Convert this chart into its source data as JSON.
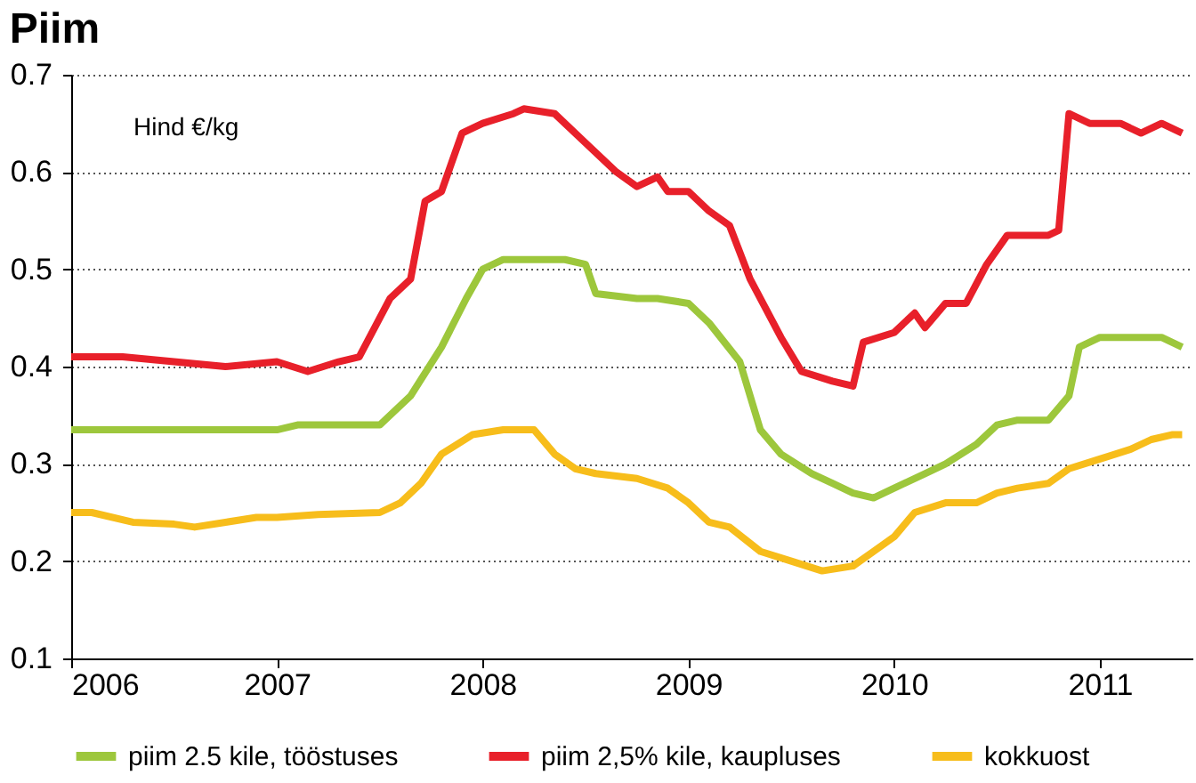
{
  "chart_data": {
    "type": "line",
    "title": "Piim",
    "annotations": [
      "Hind €/kg"
    ],
    "xlim": [
      2006,
      2011.45
    ],
    "xticks": [
      2006,
      2007,
      2008,
      2009,
      2010,
      2011
    ],
    "ylim": [
      0.1,
      0.7
    ],
    "yticks": [
      0.1,
      0.2,
      0.3,
      0.4,
      0.5,
      0.6,
      0.7
    ],
    "grid": "y",
    "legend": "bottom",
    "marker": "none",
    "line_style": "solid",
    "series": [
      {
        "name": "piim 2.5 kile, tööstuses",
        "color": "#9dc73c",
        "x": [
          2006.0,
          2006.5,
          2007.0,
          2007.1,
          2007.2,
          2007.5,
          2007.65,
          2007.8,
          2007.92,
          2008.0,
          2008.1,
          2008.4,
          2008.5,
          2008.55,
          2008.75,
          2008.85,
          2009.0,
          2009.1,
          2009.25,
          2009.35,
          2009.45,
          2009.6,
          2009.7,
          2009.8,
          2009.9,
          2010.0,
          2010.15,
          2010.25,
          2010.4,
          2010.5,
          2010.6,
          2010.75,
          2010.85,
          2010.9,
          2011.0,
          2011.2,
          2011.3,
          2011.4
        ],
        "values": [
          0.335,
          0.335,
          0.335,
          0.34,
          0.34,
          0.34,
          0.37,
          0.42,
          0.47,
          0.5,
          0.51,
          0.51,
          0.505,
          0.475,
          0.47,
          0.47,
          0.465,
          0.445,
          0.405,
          0.335,
          0.31,
          0.29,
          0.28,
          0.27,
          0.265,
          0.275,
          0.29,
          0.3,
          0.32,
          0.34,
          0.345,
          0.345,
          0.37,
          0.42,
          0.43,
          0.43,
          0.43,
          0.42
        ]
      },
      {
        "name": "piim 2,5% kile, kaupluses",
        "color": "#e8202a",
        "x": [
          2006.0,
          2006.25,
          2006.5,
          2006.75,
          2007.0,
          2007.15,
          2007.3,
          2007.4,
          2007.55,
          2007.65,
          2007.72,
          2007.8,
          2007.9,
          2008.0,
          2008.15,
          2008.2,
          2008.35,
          2008.5,
          2008.65,
          2008.75,
          2008.85,
          2008.9,
          2009.0,
          2009.1,
          2009.2,
          2009.3,
          2009.45,
          2009.55,
          2009.7,
          2009.8,
          2009.85,
          2010.0,
          2010.1,
          2010.15,
          2010.25,
          2010.35,
          2010.45,
          2010.55,
          2010.75,
          2010.8,
          2010.85,
          2010.95,
          2011.1,
          2011.2,
          2011.3,
          2011.4
        ],
        "values": [
          0.41,
          0.41,
          0.405,
          0.4,
          0.405,
          0.395,
          0.405,
          0.41,
          0.47,
          0.49,
          0.57,
          0.58,
          0.64,
          0.65,
          0.66,
          0.665,
          0.66,
          0.63,
          0.6,
          0.585,
          0.595,
          0.58,
          0.58,
          0.56,
          0.545,
          0.49,
          0.43,
          0.395,
          0.385,
          0.38,
          0.425,
          0.435,
          0.455,
          0.44,
          0.465,
          0.465,
          0.505,
          0.535,
          0.535,
          0.54,
          0.66,
          0.65,
          0.65,
          0.64,
          0.65,
          0.64
        ]
      },
      {
        "name": "kokkuost",
        "color": "#f7bd1b",
        "x": [
          2006.0,
          2006.1,
          2006.3,
          2006.5,
          2006.6,
          2006.75,
          2006.9,
          2007.0,
          2007.2,
          2007.5,
          2007.6,
          2007.7,
          2007.8,
          2007.95,
          2008.1,
          2008.25,
          2008.35,
          2008.45,
          2008.55,
          2008.75,
          2008.9,
          2009.0,
          2009.1,
          2009.2,
          2009.35,
          2009.5,
          2009.65,
          2009.8,
          2009.9,
          2010.0,
          2010.1,
          2010.25,
          2010.4,
          2010.5,
          2010.6,
          2010.75,
          2010.85,
          2011.0,
          2011.15,
          2011.25,
          2011.35,
          2011.4
        ],
        "values": [
          0.25,
          0.25,
          0.24,
          0.238,
          0.235,
          0.24,
          0.245,
          0.245,
          0.248,
          0.25,
          0.26,
          0.28,
          0.31,
          0.33,
          0.335,
          0.335,
          0.31,
          0.295,
          0.29,
          0.285,
          0.275,
          0.26,
          0.24,
          0.235,
          0.21,
          0.2,
          0.19,
          0.195,
          0.21,
          0.225,
          0.25,
          0.26,
          0.26,
          0.27,
          0.275,
          0.28,
          0.295,
          0.305,
          0.315,
          0.325,
          0.33,
          0.33
        ]
      }
    ]
  }
}
